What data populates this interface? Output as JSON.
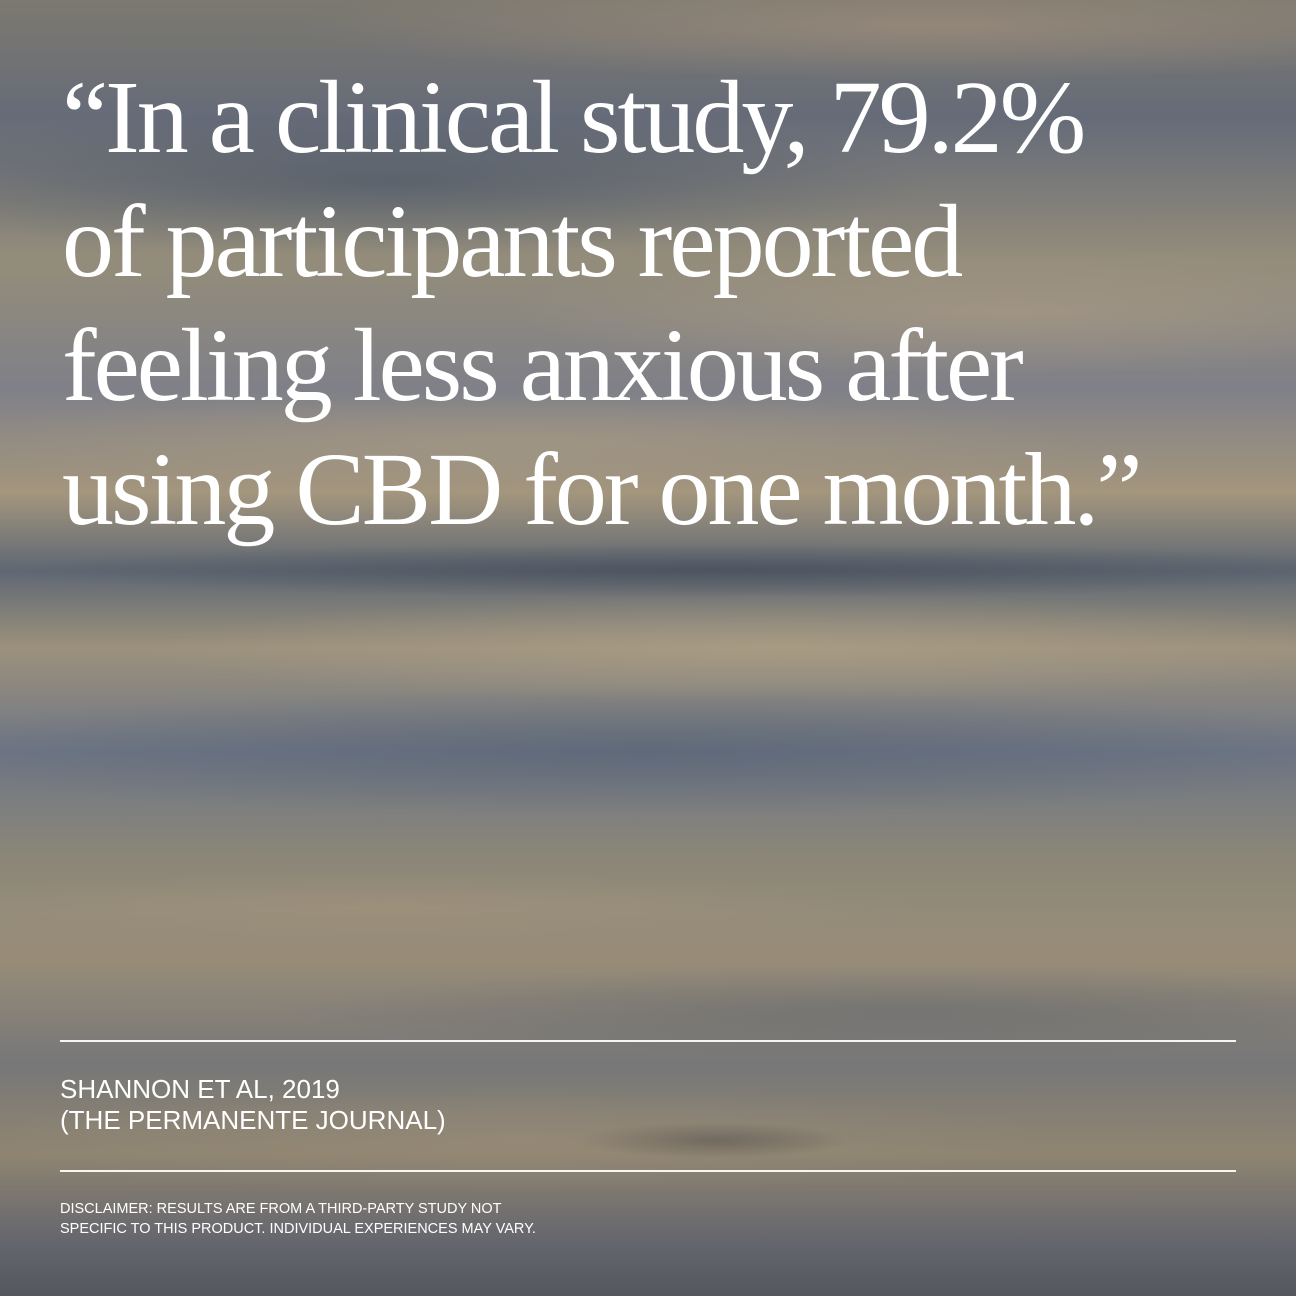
{
  "quote": {
    "lines": [
      "“In a clinical study, 79.2%",
      "of participants reported",
      "feeling less anxious after",
      "using CBD for one month.”"
    ]
  },
  "citation": {
    "lines": [
      "SHANNON ET AL, 2019",
      "(THE PERMANENTE JOURNAL)"
    ]
  },
  "disclaimer": {
    "lines": [
      "DISCLAIMER: RESULTS ARE FROM A THIRD-PARTY STUDY NOT",
      "SPECIFIC TO THIS PRODUCT. INDIVIDUAL EXPERIENCES MAY VARY."
    ]
  },
  "colors": {
    "text": "#ffffff",
    "rule": "#ffffff"
  }
}
